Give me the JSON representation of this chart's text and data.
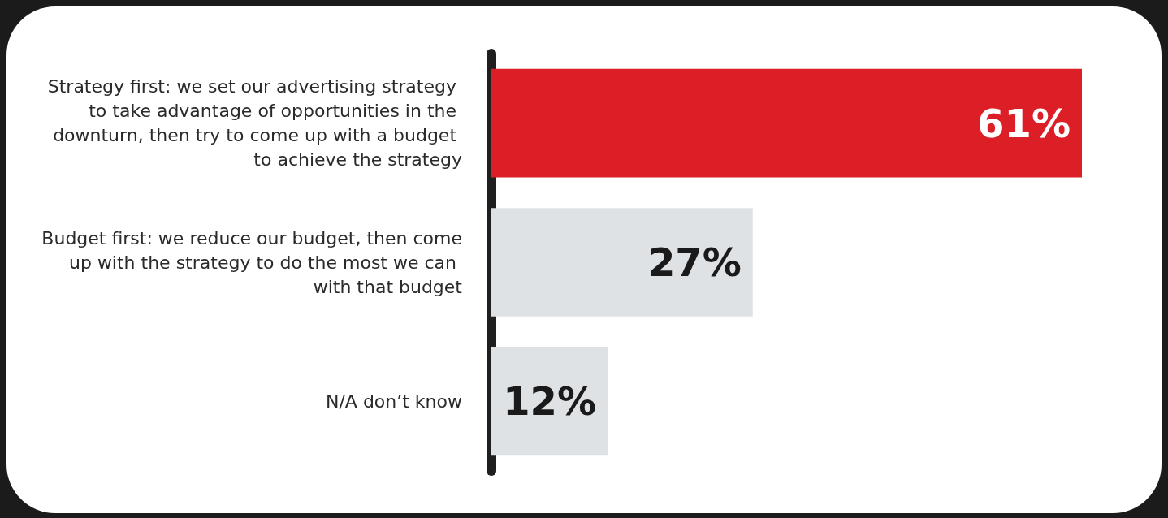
{
  "chart_data": {
    "type": "bar",
    "orientation": "horizontal",
    "categories": [
      "Strategy first: we set our advertising strategy to take advantage of opportunities in the downturn, then try to come up with a budget to achieve the strategy",
      "Budget first: we reduce our budget, then come up with the strategy to do the most we can with that budget",
      "N/A don’t know"
    ],
    "values": [
      61,
      27,
      12
    ],
    "colors": [
      "#dc1f26",
      "#dfe2e5",
      "#dfe2e5"
    ],
    "value_labels": [
      "61%",
      "27%",
      "12%"
    ]
  }
}
